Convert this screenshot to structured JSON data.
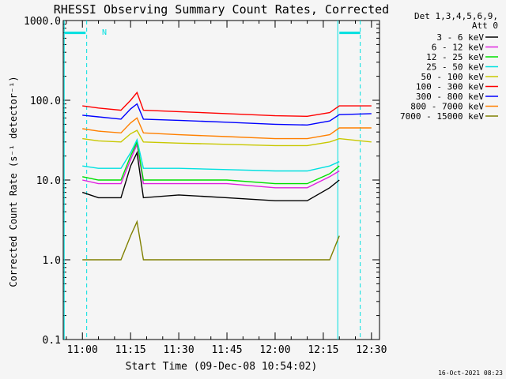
{
  "chart_data": {
    "type": "line",
    "title": "RHESSI Observing Summary Count Rates, Corrected",
    "xlabel": "Start Time (09-Dec-08 10:54:02)",
    "ylabel": "Corrected Count Rate (s⁻¹ detector⁻¹)",
    "y_scale": "log",
    "ylim": [
      0.1,
      1000
    ],
    "y_ticks": [
      {
        "value": 0.1,
        "label": "0.1"
      },
      {
        "value": 1,
        "label": "1.0"
      },
      {
        "value": 10,
        "label": "10.0"
      },
      {
        "value": 100,
        "label": "100.0"
      },
      {
        "value": 1000,
        "label": "1000.0"
      }
    ],
    "xlim": [
      "10:54:02",
      "12:32:30"
    ],
    "x_ticks": [
      "11:00",
      "11:15",
      "11:30",
      "11:45",
      "12:00",
      "12:15",
      "12:30"
    ],
    "legend_header": [
      "Det 1,3,4,5,6,9,",
      "Att 0"
    ],
    "legend_placement": "right",
    "series": [
      {
        "name": "3 - 6 keV",
        "color": "#000000",
        "x": [
          "11:00",
          "11:05",
          "11:12",
          "11:15",
          "11:17",
          "11:19",
          "11:30",
          "11:45",
          "12:00",
          "12:10",
          "12:17",
          "12:20"
        ],
        "values": [
          7,
          6,
          6,
          15,
          22,
          6,
          6.5,
          6,
          5.5,
          5.5,
          8,
          10
        ]
      },
      {
        "name": "6 - 12 keV",
        "color": "#e020e0",
        "x": [
          "11:00",
          "11:05",
          "11:12",
          "11:15",
          "11:17",
          "11:19",
          "11:30",
          "11:45",
          "12:00",
          "12:10",
          "12:17",
          "12:20"
        ],
        "values": [
          10,
          9,
          9,
          18,
          28,
          9,
          9,
          9,
          8,
          8,
          11,
          13
        ]
      },
      {
        "name": "12 - 25 keV",
        "color": "#00e000",
        "x": [
          "11:00",
          "11:05",
          "11:12",
          "11:15",
          "11:17",
          "11:19",
          "11:30",
          "11:45",
          "12:00",
          "12:10",
          "12:17",
          "12:20"
        ],
        "values": [
          11,
          10,
          10,
          20,
          30,
          10,
          10,
          10,
          9,
          9,
          12,
          15
        ]
      },
      {
        "name": "25 - 50 keV",
        "color": "#00e0e0",
        "x": [
          "11:00",
          "11:05",
          "11:12",
          "11:15",
          "11:17",
          "11:19",
          "11:30",
          "11:45",
          "12:00",
          "12:10",
          "12:17",
          "12:20"
        ],
        "values": [
          15,
          14,
          14,
          22,
          32,
          14,
          14,
          13.5,
          13,
          13,
          15,
          17
        ]
      },
      {
        "name": "50 - 100 keV",
        "color": "#c8c800",
        "x": [
          "11:00",
          "11:05",
          "11:12",
          "11:15",
          "11:17",
          "11:19",
          "11:30",
          "11:45",
          "12:00",
          "12:10",
          "12:17",
          "12:20",
          "12:30"
        ],
        "values": [
          33,
          31,
          30,
          38,
          42,
          30,
          29,
          28,
          27,
          27,
          30,
          33,
          30
        ]
      },
      {
        "name": "100 - 300 keV",
        "color": "#ff0000",
        "x": [
          "11:00",
          "11:05",
          "11:12",
          "11:15",
          "11:17",
          "11:19",
          "11:30",
          "11:45",
          "12:00",
          "12:10",
          "12:17",
          "12:20",
          "12:30"
        ],
        "values": [
          85,
          80,
          75,
          100,
          125,
          75,
          72,
          68,
          64,
          63,
          70,
          85,
          85
        ]
      },
      {
        "name": "300 - 800 keV",
        "color": "#0000ff",
        "x": [
          "11:00",
          "11:05",
          "11:12",
          "11:15",
          "11:17",
          "11:19",
          "11:30",
          "11:45",
          "12:00",
          "12:10",
          "12:17",
          "12:20",
          "12:30"
        ],
        "values": [
          65,
          62,
          58,
          78,
          90,
          58,
          56,
          53,
          50,
          49,
          55,
          66,
          68
        ]
      },
      {
        "name": "800 - 7000 keV",
        "color": "#ff8000",
        "x": [
          "11:00",
          "11:05",
          "11:12",
          "11:15",
          "11:17",
          "11:19",
          "11:30",
          "11:45",
          "12:00",
          "12:10",
          "12:17",
          "12:20",
          "12:30"
        ],
        "values": [
          44,
          41,
          39,
          52,
          60,
          39,
          37,
          35,
          33,
          33,
          37,
          45,
          45
        ]
      },
      {
        "name": "7000 - 15000 keV",
        "color": "#808000",
        "x": [
          "11:00",
          "11:05",
          "11:12",
          "11:15",
          "11:17",
          "11:19",
          "11:30",
          "11:45",
          "12:00",
          "12:10",
          "12:17",
          "12:20"
        ],
        "values": [
          1,
          1,
          1,
          2,
          3,
          1,
          1,
          1,
          1,
          1,
          1,
          2
        ]
      }
    ],
    "annotations": [
      {
        "type": "n-flag-label",
        "label": "N"
      }
    ],
    "timestamp": "16-Oct-2021 08:23"
  }
}
